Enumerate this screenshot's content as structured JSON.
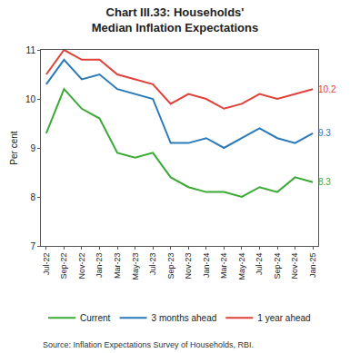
{
  "chart_data": {
    "type": "line",
    "title": "Chart III.33: Households' Median Inflation Expectations",
    "y_label": "Per cent",
    "source": "Source: Inflation Expectations Survey of Households, RBI.",
    "categories": [
      "Jul-22",
      "Sep-22",
      "Nov-22",
      "Jan-23",
      "Mar-23",
      "May-23",
      "Jul-23",
      "Sep-23",
      "Nov-23",
      "Jan-24",
      "Mar-24",
      "May-24",
      "Jul-24",
      "Sep-24",
      "Nov-24",
      "Jan-25"
    ],
    "series": [
      {
        "name": "Current",
        "color": "#3aaa35",
        "values": [
          9.3,
          10.2,
          9.8,
          9.6,
          8.9,
          8.8,
          8.9,
          8.4,
          8.2,
          8.1,
          8.1,
          8.0,
          8.2,
          8.1,
          8.4,
          8.3
        ]
      },
      {
        "name": "3 months ahead",
        "color": "#2a7ab9",
        "values": [
          10.3,
          10.8,
          10.4,
          10.5,
          10.2,
          10.1,
          10.0,
          9.1,
          9.1,
          9.2,
          9.0,
          9.2,
          9.4,
          9.2,
          9.1,
          9.3
        ]
      },
      {
        "name": "1 year ahead",
        "color": "#e0413a",
        "values": [
          10.5,
          11.0,
          10.8,
          10.8,
          10.5,
          10.4,
          10.3,
          9.9,
          10.1,
          10.0,
          9.8,
          9.9,
          10.1,
          10.0,
          10.1,
          10.2
        ]
      }
    ],
    "annotations": [
      {
        "x": "Jan-25",
        "y": 8.3,
        "text": "8.3",
        "color": "#3aaa35"
      },
      {
        "x": "Jan-25",
        "y": 9.3,
        "text": "9.3",
        "color": "#2a7ab9"
      },
      {
        "x": "Jan-25",
        "y": 10.2,
        "text": "10.2",
        "color": "#e0413a"
      }
    ],
    "ylim": [
      7,
      11
    ],
    "yticks": [
      7,
      8,
      9,
      10,
      11
    ],
    "grid": false,
    "legend": "bottom"
  }
}
